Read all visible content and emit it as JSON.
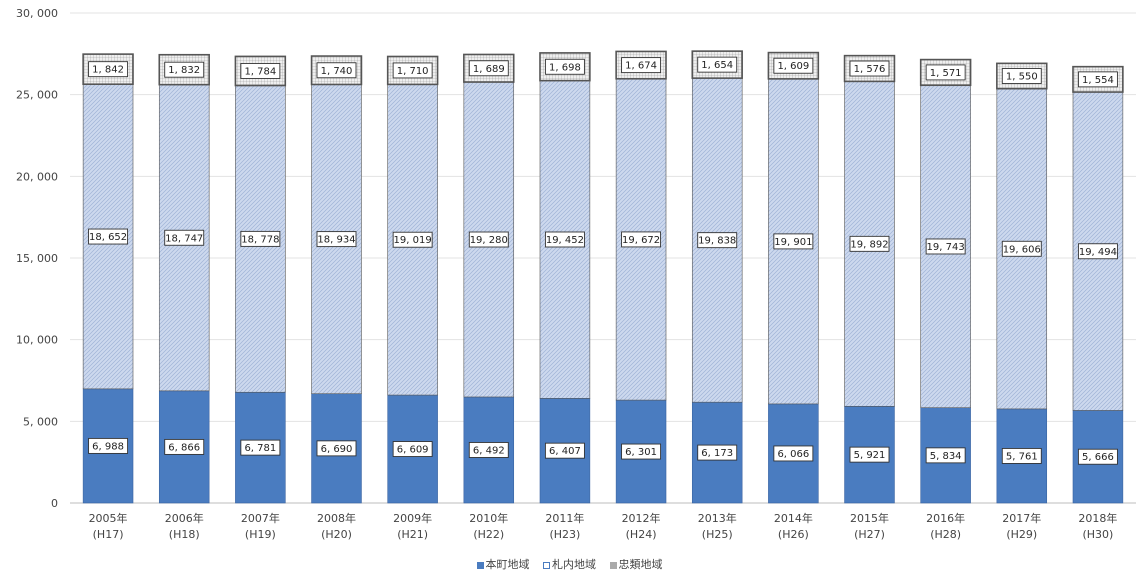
{
  "chart_data": {
    "type": "bar",
    "stacked": true,
    "categories": [
      [
        "2005年",
        "(H17)"
      ],
      [
        "2006年",
        "(H18)"
      ],
      [
        "2007年",
        "(H19)"
      ],
      [
        "2008年",
        "(H20)"
      ],
      [
        "2009年",
        "(H21)"
      ],
      [
        "2010年",
        "(H22)"
      ],
      [
        "2011年",
        "(H23)"
      ],
      [
        "2012年",
        "(H24)"
      ],
      [
        "2013年",
        "(H25)"
      ],
      [
        "2014年",
        "(H26)"
      ],
      [
        "2015年",
        "(H27)"
      ],
      [
        "2016年",
        "(H28)"
      ],
      [
        "2017年",
        "(H29)"
      ],
      [
        "2018年",
        "(H30)"
      ]
    ],
    "series": [
      {
        "name": "本町地域",
        "color": "#4a7cc0",
        "pattern": "solid",
        "values": [
          6988,
          6866,
          6781,
          6690,
          6609,
          6492,
          6407,
          6301,
          6173,
          6066,
          5921,
          5834,
          5761,
          5666
        ],
        "labels": [
          "6, 988",
          "6, 866",
          "6, 781",
          "6, 690",
          "6, 609",
          "6, 492",
          "6, 407",
          "6, 301",
          "6, 173",
          "6, 066",
          "5, 921",
          "5, 834",
          "5, 761",
          "5, 666"
        ]
      },
      {
        "name": "札内地域",
        "color": "#c5d3ea",
        "pattern": "hatch",
        "values": [
          18652,
          18747,
          18778,
          18934,
          19019,
          19280,
          19452,
          19672,
          19838,
          19901,
          19892,
          19743,
          19606,
          19494
        ],
        "labels": [
          "18, 652",
          "18, 747",
          "18, 778",
          "18, 934",
          "19, 019",
          "19, 280",
          "19, 452",
          "19, 672",
          "19, 838",
          "19, 901",
          "19, 892",
          "19, 743",
          "19, 606",
          "19, 494"
        ]
      },
      {
        "name": "忠類地域",
        "color": "#d0d0d0",
        "pattern": "grid",
        "values": [
          1842,
          1832,
          1784,
          1740,
          1710,
          1689,
          1698,
          1674,
          1654,
          1609,
          1576,
          1571,
          1550,
          1554
        ],
        "labels": [
          "1, 842",
          "1, 832",
          "1, 784",
          "1, 740",
          "1, 710",
          "1, 689",
          "1, 698",
          "1, 674",
          "1, 654",
          "1, 609",
          "1, 576",
          "1, 571",
          "1, 550",
          "1, 554"
        ]
      }
    ],
    "ylim": [
      0,
      30000
    ],
    "yticks": [
      0,
      5000,
      10000,
      15000,
      20000,
      25000,
      30000
    ],
    "ytick_labels": [
      "0",
      "5, 000",
      "10, 000",
      "15, 000",
      "20, 000",
      "25, 000",
      "30, 000"
    ],
    "grid": true,
    "legend_position": "bottom"
  }
}
